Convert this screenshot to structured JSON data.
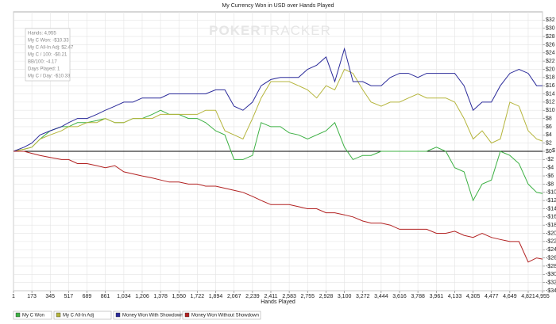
{
  "chart_data": {
    "type": "line",
    "title": "My Currency Won in USD over Hands Played",
    "x_label": "Hands Played",
    "y_label": "$",
    "watermark": [
      "POKER",
      "TRACKER"
    ],
    "info_box": [
      "Hands: 4,955",
      "My C Won: -$10.33",
      "My C All-In Adj: $2.47",
      "My C / 100: -$0.21",
      "BB/100: -4.17",
      "Days Played: 1",
      "My C / Day: -$10.33"
    ],
    "x": [
      1,
      100,
      173,
      250,
      345,
      450,
      517,
      600,
      689,
      780,
      861,
      950,
      1034,
      1120,
      1206,
      1300,
      1378,
      1460,
      1550,
      1640,
      1722,
      1800,
      1894,
      1980,
      2067,
      2150,
      2239,
      2320,
      2411,
      2500,
      2583,
      2670,
      2755,
      2840,
      2928,
      3010,
      3100,
      3180,
      3272,
      3350,
      3444,
      3530,
      3616,
      3700,
      3788,
      3870,
      3961,
      4050,
      4133,
      4220,
      4305,
      4390,
      4477,
      4560,
      4649,
      4735,
      4821,
      4900,
      4955
    ],
    "series": [
      {
        "name": "My C Won",
        "color": "#3cb043",
        "values": [
          0,
          0.5,
          1,
          3,
          5,
          6,
          6,
          7,
          7,
          7.5,
          8,
          7,
          7,
          8,
          8,
          9,
          10,
          9,
          9,
          8,
          8,
          7,
          5,
          4,
          -2,
          -2,
          -1,
          7,
          6,
          6,
          4.5,
          4,
          3,
          4,
          5,
          7,
          1,
          -2,
          -1,
          -1,
          0,
          0,
          0,
          0,
          0,
          0,
          1,
          0,
          -4,
          -5,
          -12,
          -8,
          -7,
          0,
          -1,
          -3,
          -8,
          -10,
          -10.3
        ]
      },
      {
        "name": "My C All-In Adj",
        "color": "#b5b53c",
        "values": [
          0,
          0.5,
          1,
          3,
          4,
          5,
          6,
          6,
          7,
          7,
          8,
          7,
          7,
          8,
          8,
          8,
          9,
          9,
          9,
          9,
          9,
          10,
          10,
          5,
          4,
          3,
          8,
          13,
          17,
          17,
          17,
          16,
          15,
          13,
          16,
          15,
          20,
          19,
          15,
          12,
          11,
          12,
          12,
          13,
          14,
          13,
          13,
          13,
          12,
          8,
          3,
          5,
          2,
          3,
          12,
          11,
          5,
          3,
          2.5
        ]
      },
      {
        "name": "Money Won With Showdown",
        "color": "#2b2b9a",
        "values": [
          0,
          1,
          2,
          4,
          5,
          6,
          7,
          8,
          8,
          9,
          10,
          11,
          12,
          12,
          13,
          13,
          13,
          14,
          14,
          14,
          14,
          14,
          15,
          15,
          11,
          10,
          12,
          16,
          17.5,
          18,
          18,
          18,
          20,
          21,
          23,
          17,
          25,
          17,
          17,
          16,
          16,
          18,
          19,
          19,
          18,
          19,
          19,
          19,
          19,
          16,
          10,
          12,
          12,
          16,
          19,
          20,
          19,
          16,
          16
        ]
      },
      {
        "name": "Money Won Without Showdown",
        "color": "#b22222",
        "values": [
          0,
          0,
          -0.5,
          -1,
          -1.5,
          -2,
          -2,
          -3,
          -3,
          -3.5,
          -4,
          -3.5,
          -5,
          -5.5,
          -6,
          -6.5,
          -7,
          -7.5,
          -7.5,
          -8,
          -8,
          -8.5,
          -8.5,
          -9,
          -9.5,
          -10,
          -11,
          -12,
          -13,
          -13,
          -13,
          -13.5,
          -14,
          -14,
          -15,
          -15,
          -15.5,
          -16,
          -17,
          -17.5,
          -17.5,
          -18,
          -19,
          -19,
          -19,
          -19,
          -20,
          -20,
          -19.5,
          -20.5,
          -21,
          -20,
          -21,
          -21.5,
          -22,
          -22,
          -27,
          -26,
          -26.3
        ]
      }
    ],
    "xlim": [
      1,
      4955
    ],
    "xticks": [
      1,
      173,
      345,
      517,
      689,
      861,
      {
        "value": 1034,
        "label": "1,034"
      },
      {
        "value": 1206,
        "label": "1,206"
      },
      {
        "value": 1378,
        "label": "1,378"
      },
      {
        "value": 1550,
        "label": "1,550"
      },
      {
        "value": 1722,
        "label": "1,722"
      },
      {
        "value": 1894,
        "label": "1,894"
      },
      {
        "value": 2067,
        "label": "2,067"
      },
      {
        "value": 2239,
        "label": "2,239"
      },
      {
        "value": 2411,
        "label": "2,411"
      },
      {
        "value": 2583,
        "label": "2,583"
      },
      {
        "value": 2755,
        "label": "2,755"
      },
      {
        "value": 2928,
        "label": "2,928"
      },
      {
        "value": 3100,
        "label": "3,100"
      },
      {
        "value": 3272,
        "label": "3,272"
      },
      {
        "value": 3444,
        "label": "3,444"
      },
      {
        "value": 3616,
        "label": "3,616"
      },
      {
        "value": 3788,
        "label": "3,788"
      },
      {
        "value": 3961,
        "label": "3,961"
      },
      {
        "value": 4133,
        "label": "4,133"
      },
      {
        "value": 4305,
        "label": "4,305"
      },
      {
        "value": 4477,
        "label": "4,477"
      },
      {
        "value": 4649,
        "label": "4,649"
      },
      {
        "value": 4821,
        "label": "4,821"
      },
      {
        "value": 4955,
        "label": "4,955"
      }
    ],
    "ylim": [
      -34,
      34
    ],
    "yticks": [
      {
        "value": 32,
        "label": "$32"
      },
      {
        "value": 30,
        "label": "$30"
      },
      {
        "value": 28,
        "label": "$28"
      },
      {
        "value": 26,
        "label": "$26"
      },
      {
        "value": 24,
        "label": "$24"
      },
      {
        "value": 22,
        "label": "$22"
      },
      {
        "value": 20,
        "label": "$20"
      },
      {
        "value": 18,
        "label": "$18"
      },
      {
        "value": 16,
        "label": "$16"
      },
      {
        "value": 14,
        "label": "$14"
      },
      {
        "value": 12,
        "label": "$12"
      },
      {
        "value": 10,
        "label": "$10"
      },
      {
        "value": 8,
        "label": "$8"
      },
      {
        "value": 6,
        "label": "$6"
      },
      {
        "value": 4,
        "label": "$4"
      },
      {
        "value": 2,
        "label": "$2"
      },
      {
        "value": 0,
        "label": "$0"
      },
      {
        "value": -2,
        "label": "-$2"
      },
      {
        "value": -4,
        "label": "-$4"
      },
      {
        "value": -6,
        "label": "-$6"
      },
      {
        "value": -8,
        "label": "-$8"
      },
      {
        "value": -10,
        "label": "-$10"
      },
      {
        "value": -12,
        "label": "-$12"
      },
      {
        "value": -14,
        "label": "-$14"
      },
      {
        "value": -16,
        "label": "-$16"
      },
      {
        "value": -18,
        "label": "-$18"
      },
      {
        "value": -20,
        "label": "-$20"
      },
      {
        "value": -22,
        "label": "-$22"
      },
      {
        "value": -24,
        "label": "-$24"
      },
      {
        "value": -26,
        "label": "-$26"
      },
      {
        "value": -28,
        "label": "-$28"
      },
      {
        "value": -30,
        "label": "-$30"
      },
      {
        "value": -32,
        "label": "-$32"
      },
      {
        "value": -34,
        "label": "-$34"
      }
    ],
    "grid": true,
    "legend": "bottom-left"
  }
}
